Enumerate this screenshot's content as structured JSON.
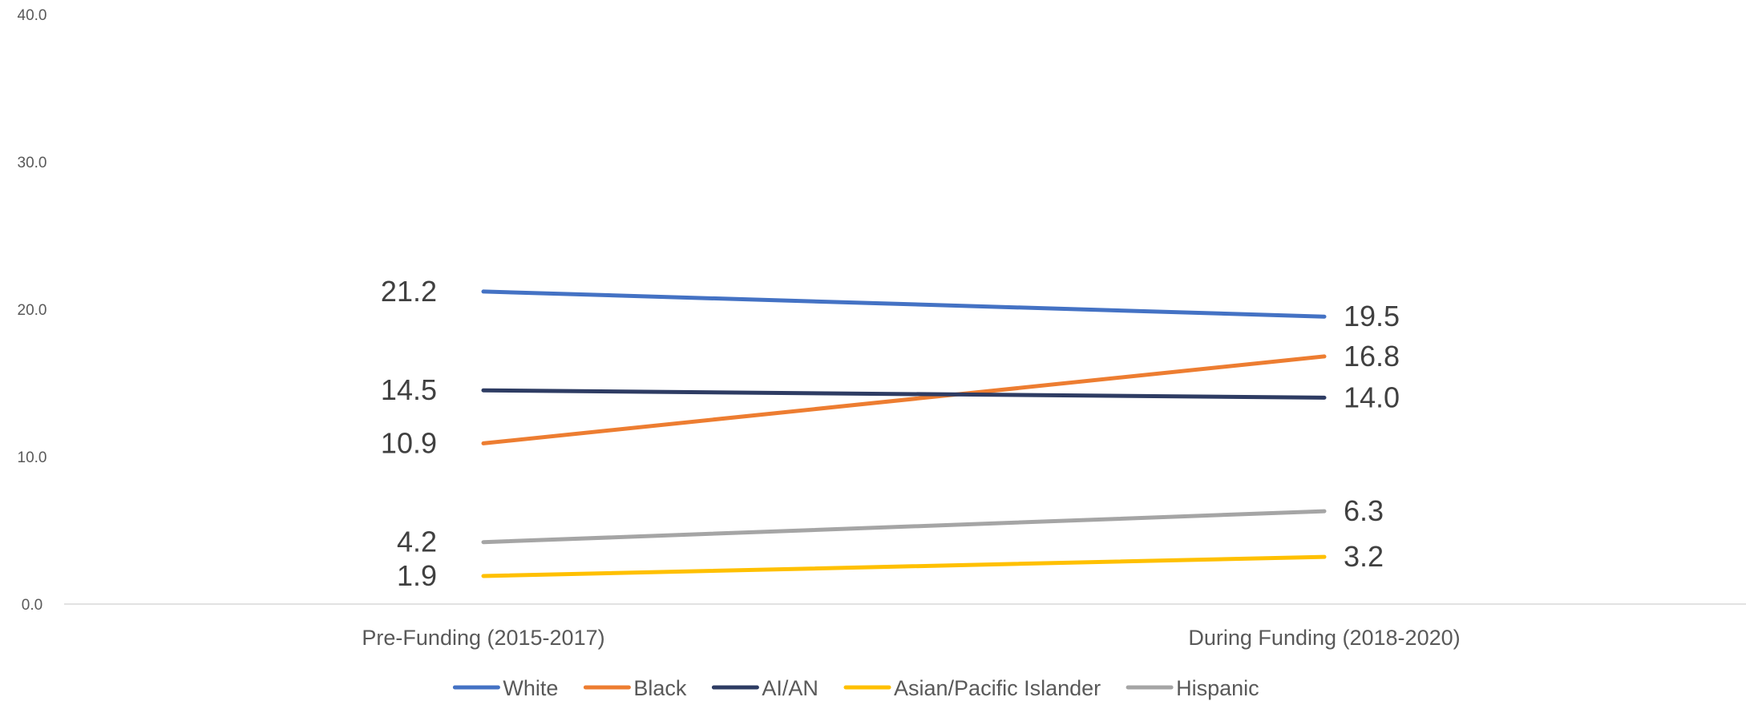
{
  "chart_data": {
    "type": "line",
    "title": "",
    "xlabel": "",
    "ylabel": "",
    "categories": [
      "Pre-Funding (2015-2017)",
      "During Funding (2018-2020)"
    ],
    "ylim": [
      0,
      40
    ],
    "yticks": [
      0,
      10,
      20,
      30,
      40
    ],
    "ytick_labels": [
      "0.0",
      "10.0",
      "20.0",
      "30.0",
      "40.0"
    ],
    "grid": false,
    "legend_position": "bottom",
    "series": [
      {
        "name": "White",
        "values": [
          21.2,
          19.5
        ],
        "labels": [
          "21.2",
          "19.5"
        ],
        "color": "#4472C4"
      },
      {
        "name": "Black",
        "values": [
          10.9,
          16.8
        ],
        "labels": [
          "10.9",
          "16.8"
        ],
        "color": "#ED7D31"
      },
      {
        "name": "AI/AN",
        "values": [
          14.5,
          14.0
        ],
        "labels": [
          "14.5",
          "14.0"
        ],
        "color": "#2E3C63"
      },
      {
        "name": "Asian/Pacific Islander",
        "values": [
          1.9,
          3.2
        ],
        "labels": [
          "1.9",
          "3.2"
        ],
        "color": "#FFC000"
      },
      {
        "name": "Hispanic",
        "values": [
          4.2,
          6.3
        ],
        "labels": [
          "4.2",
          "6.3"
        ],
        "color": "#A5A5A5"
      }
    ]
  }
}
